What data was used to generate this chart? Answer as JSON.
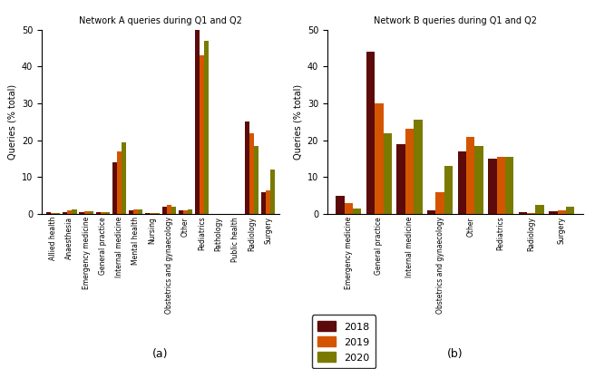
{
  "network_a": {
    "title": "Network A queries during Q1 and Q2",
    "categories": [
      "Allied health",
      "Anaesthesia",
      "Emergency medicine",
      "General practice",
      "Internal medicine",
      "Mental health",
      "Nursing",
      "Obstetrics and gynaecology",
      "Other",
      "Pediatrics",
      "Pathology",
      "Public health",
      "Radiology",
      "Surgery"
    ],
    "values_2018": [
      0.5,
      0.5,
      0.5,
      0.5,
      14.0,
      1.0,
      0.3,
      2.0,
      1.0,
      50.0,
      0.0,
      0.0,
      25.0,
      6.0
    ],
    "values_2019": [
      0.3,
      1.0,
      0.7,
      0.5,
      17.0,
      1.2,
      0.3,
      2.5,
      1.0,
      43.0,
      0.0,
      0.0,
      22.0,
      6.5
    ],
    "values_2020": [
      0.3,
      1.3,
      0.8,
      0.6,
      19.5,
      1.3,
      0.3,
      2.0,
      1.2,
      47.0,
      0.0,
      0.0,
      18.5,
      12.0
    ]
  },
  "network_b": {
    "title": "Network B queries during Q1 and Q2",
    "categories": [
      "Emergency medicine",
      "General practice",
      "Internal medicine",
      "Obstetrics and gynaecology",
      "Other",
      "Pediatrics",
      "Radiology",
      "Surgery"
    ],
    "values_2018": [
      5.0,
      44.0,
      19.0,
      1.0,
      17.0,
      15.0,
      0.5,
      0.7
    ],
    "values_2019": [
      3.0,
      30.0,
      23.0,
      6.0,
      21.0,
      15.5,
      0.3,
      1.0
    ],
    "values_2020": [
      1.5,
      22.0,
      25.5,
      13.0,
      18.5,
      15.5,
      2.5,
      2.0
    ]
  },
  "colors": {
    "2018": "#5c0a0a",
    "2019": "#d45500",
    "2020": "#7a7a00"
  },
  "legend_labels": [
    "2018",
    "2019",
    "2020"
  ],
  "ylabel": "Queries (% total)",
  "ylim": [
    0,
    50
  ],
  "yticks": [
    0,
    10,
    20,
    30,
    40,
    50
  ],
  "label_a": "(a)",
  "label_b": "(b)"
}
